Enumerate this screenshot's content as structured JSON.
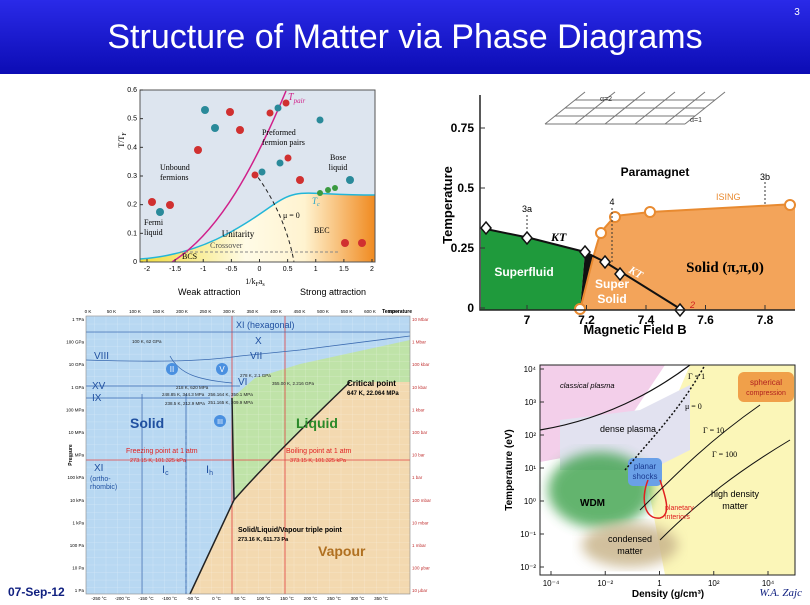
{
  "slide": {
    "title": "Structure of Matter via Phase Diagrams",
    "page_number": "3",
    "date": "07-Sep-12",
    "author": "W.A. Zajc"
  },
  "crossover_diagram": {
    "y_label": [
      "T/T",
      "F"
    ],
    "x_label": [
      "1/k",
      "F",
      "a",
      "s"
    ],
    "x_ticks": [
      "-2",
      "-1.5",
      "-1",
      "-0.5",
      "0",
      "0.5",
      "1",
      "1.5",
      "2"
    ],
    "y_ticks": [
      "0",
      "0.1",
      "0.2",
      "0.3",
      "0.4",
      "0.5",
      "0.6"
    ],
    "labels": {
      "t_pair": [
        "T",
        "pair"
      ],
      "unbound": [
        "Unbound",
        "fermions"
      ],
      "preformed": [
        "Preformed",
        "fermion pairs"
      ],
      "bose": [
        "Bose",
        "liquid"
      ],
      "fermi": [
        "Fermi",
        "liquid"
      ],
      "unitarity": "Unitarity",
      "bcs": "BCS",
      "bec": "BEC",
      "crossover": "Crossover",
      "mu": "μ = 0",
      "t_c": [
        "T",
        "c"
      ],
      "weak": "Weak attraction",
      "strong": "Strong attraction"
    }
  },
  "lattice_diagram": {
    "y_label": "Temperature",
    "x_label": "Magnetic Field B",
    "y_ticks": [
      "0",
      "0.25",
      "0.5",
      "0.75"
    ],
    "x_ticks": [
      "7",
      "7.2",
      "7.4",
      "7.6",
      "7.8"
    ],
    "labels": {
      "alpha2": "α=2",
      "alpha1": "α=1",
      "paramagnet": "Paramagnet",
      "superfluid": "Superfluid",
      "supersolid": [
        "Super",
        "Solid"
      ],
      "solid": "Solid (π,π,0)",
      "kt1": "KT",
      "kt2": "KT",
      "ising": "ISING",
      "p3a": "3a",
      "p4": "4",
      "p3b": "3b",
      "p2": "2"
    }
  },
  "water_diagram": {
    "pressure_label": "Pressure",
    "temperature_label": "Temperature",
    "top_ticks": [
      "0 K",
      "50 K",
      "100 K",
      "150 K",
      "200 K",
      "250 K",
      "300 K",
      "350 K",
      "400 K",
      "450 K",
      "500 K",
      "550 K",
      "600 K",
      "650 K"
    ],
    "bottom_ticks": [
      "-250 °C",
      "-200 °C",
      "-150 °C",
      "-100 °C",
      "-50 °C",
      "0 °C",
      "50 °C",
      "100 °C",
      "150 °C",
      "200 °C",
      "250 °C",
      "300 °C",
      "350 °C"
    ],
    "left_ticks": [
      "1 TPa",
      "100 GPa",
      "10 GPa",
      "1 GPa",
      "100 MPa",
      "10 MPa",
      "1 MPa",
      "100 kPa",
      "10 kPa",
      "1 kPa",
      "100 Pa",
      "10 Pa",
      "1 Pa"
    ],
    "right_ticks": [
      "10 Mbar",
      "1 Mbar",
      "100 kbar",
      "10 kbar",
      "1 kbar",
      "100 bar",
      "10 bar",
      "1 bar",
      "100 mbar",
      "10 mbar",
      "1 mbar",
      "100 μbar",
      "10 μbar"
    ],
    "phases": {
      "solid": "Solid",
      "liquid": "Liquid",
      "vapour": "Vapour"
    },
    "critical": [
      "Critical point",
      "647 K, 22.064 MPa"
    ],
    "freezing": [
      "Freezing point at 1 atm",
      "273.15 K, 101.325 kPa"
    ],
    "boiling": [
      "Boiling point at 1 atm",
      "373.15 K, 101.325 kPa"
    ],
    "triple": [
      "Solid/Liquid/Vapour triple point",
      "273.16 K, 611.73 Pa"
    ],
    "ices": {
      "xi_hex": "XI (hexagonal)",
      "x": "X",
      "vii": "VII",
      "viii": "VIII",
      "vi": "VI",
      "xv": "XV",
      "ix": "IX",
      "ii": "II",
      "v": "V",
      "iii": "III",
      "xi": "XI",
      "ortho": [
        "(ortho-",
        "rhombic)"
      ],
      "ic": [
        "I",
        "c"
      ],
      "ih": [
        "I",
        "h"
      ]
    },
    "points": [
      "100 K, 62 GPa",
      "278 K, 2.1 GPa",
      "355.00 K, 2.216 GPa",
      "218 K, 620 MPa",
      "248.85 K, 344.3 MPa",
      "256.164 K, 350.1 MPa",
      "238.5 K, 212.9 MPa",
      "251.165 K, 209.9 MPa"
    ]
  },
  "plasma_diagram": {
    "y_label": "Temperature (eV)",
    "x_label": "Density (g/cm³)",
    "y_ticks": [
      "10⁴",
      "10³",
      "10²",
      "10¹",
      "10⁰",
      "10⁻¹",
      "10⁻²"
    ],
    "x_ticks": [
      "10⁻⁴",
      "10⁻²",
      "1",
      "10²",
      "10⁴"
    ],
    "labels": {
      "classical": "classical plasma",
      "gamma1": "Γ = 1",
      "mu": "μ = 0",
      "spherical": [
        "spherical",
        "compression"
      ],
      "dense": "dense plasma",
      "gamma10": "Γ = 10",
      "gamma100": "Γ = 100",
      "planar": [
        "planar",
        "shocks"
      ],
      "wdm": "WDM",
      "planetary": [
        "planetary",
        "interiors"
      ],
      "high": [
        "high density",
        "matter"
      ],
      "condensed": [
        "condensed",
        "matter"
      ]
    }
  }
}
